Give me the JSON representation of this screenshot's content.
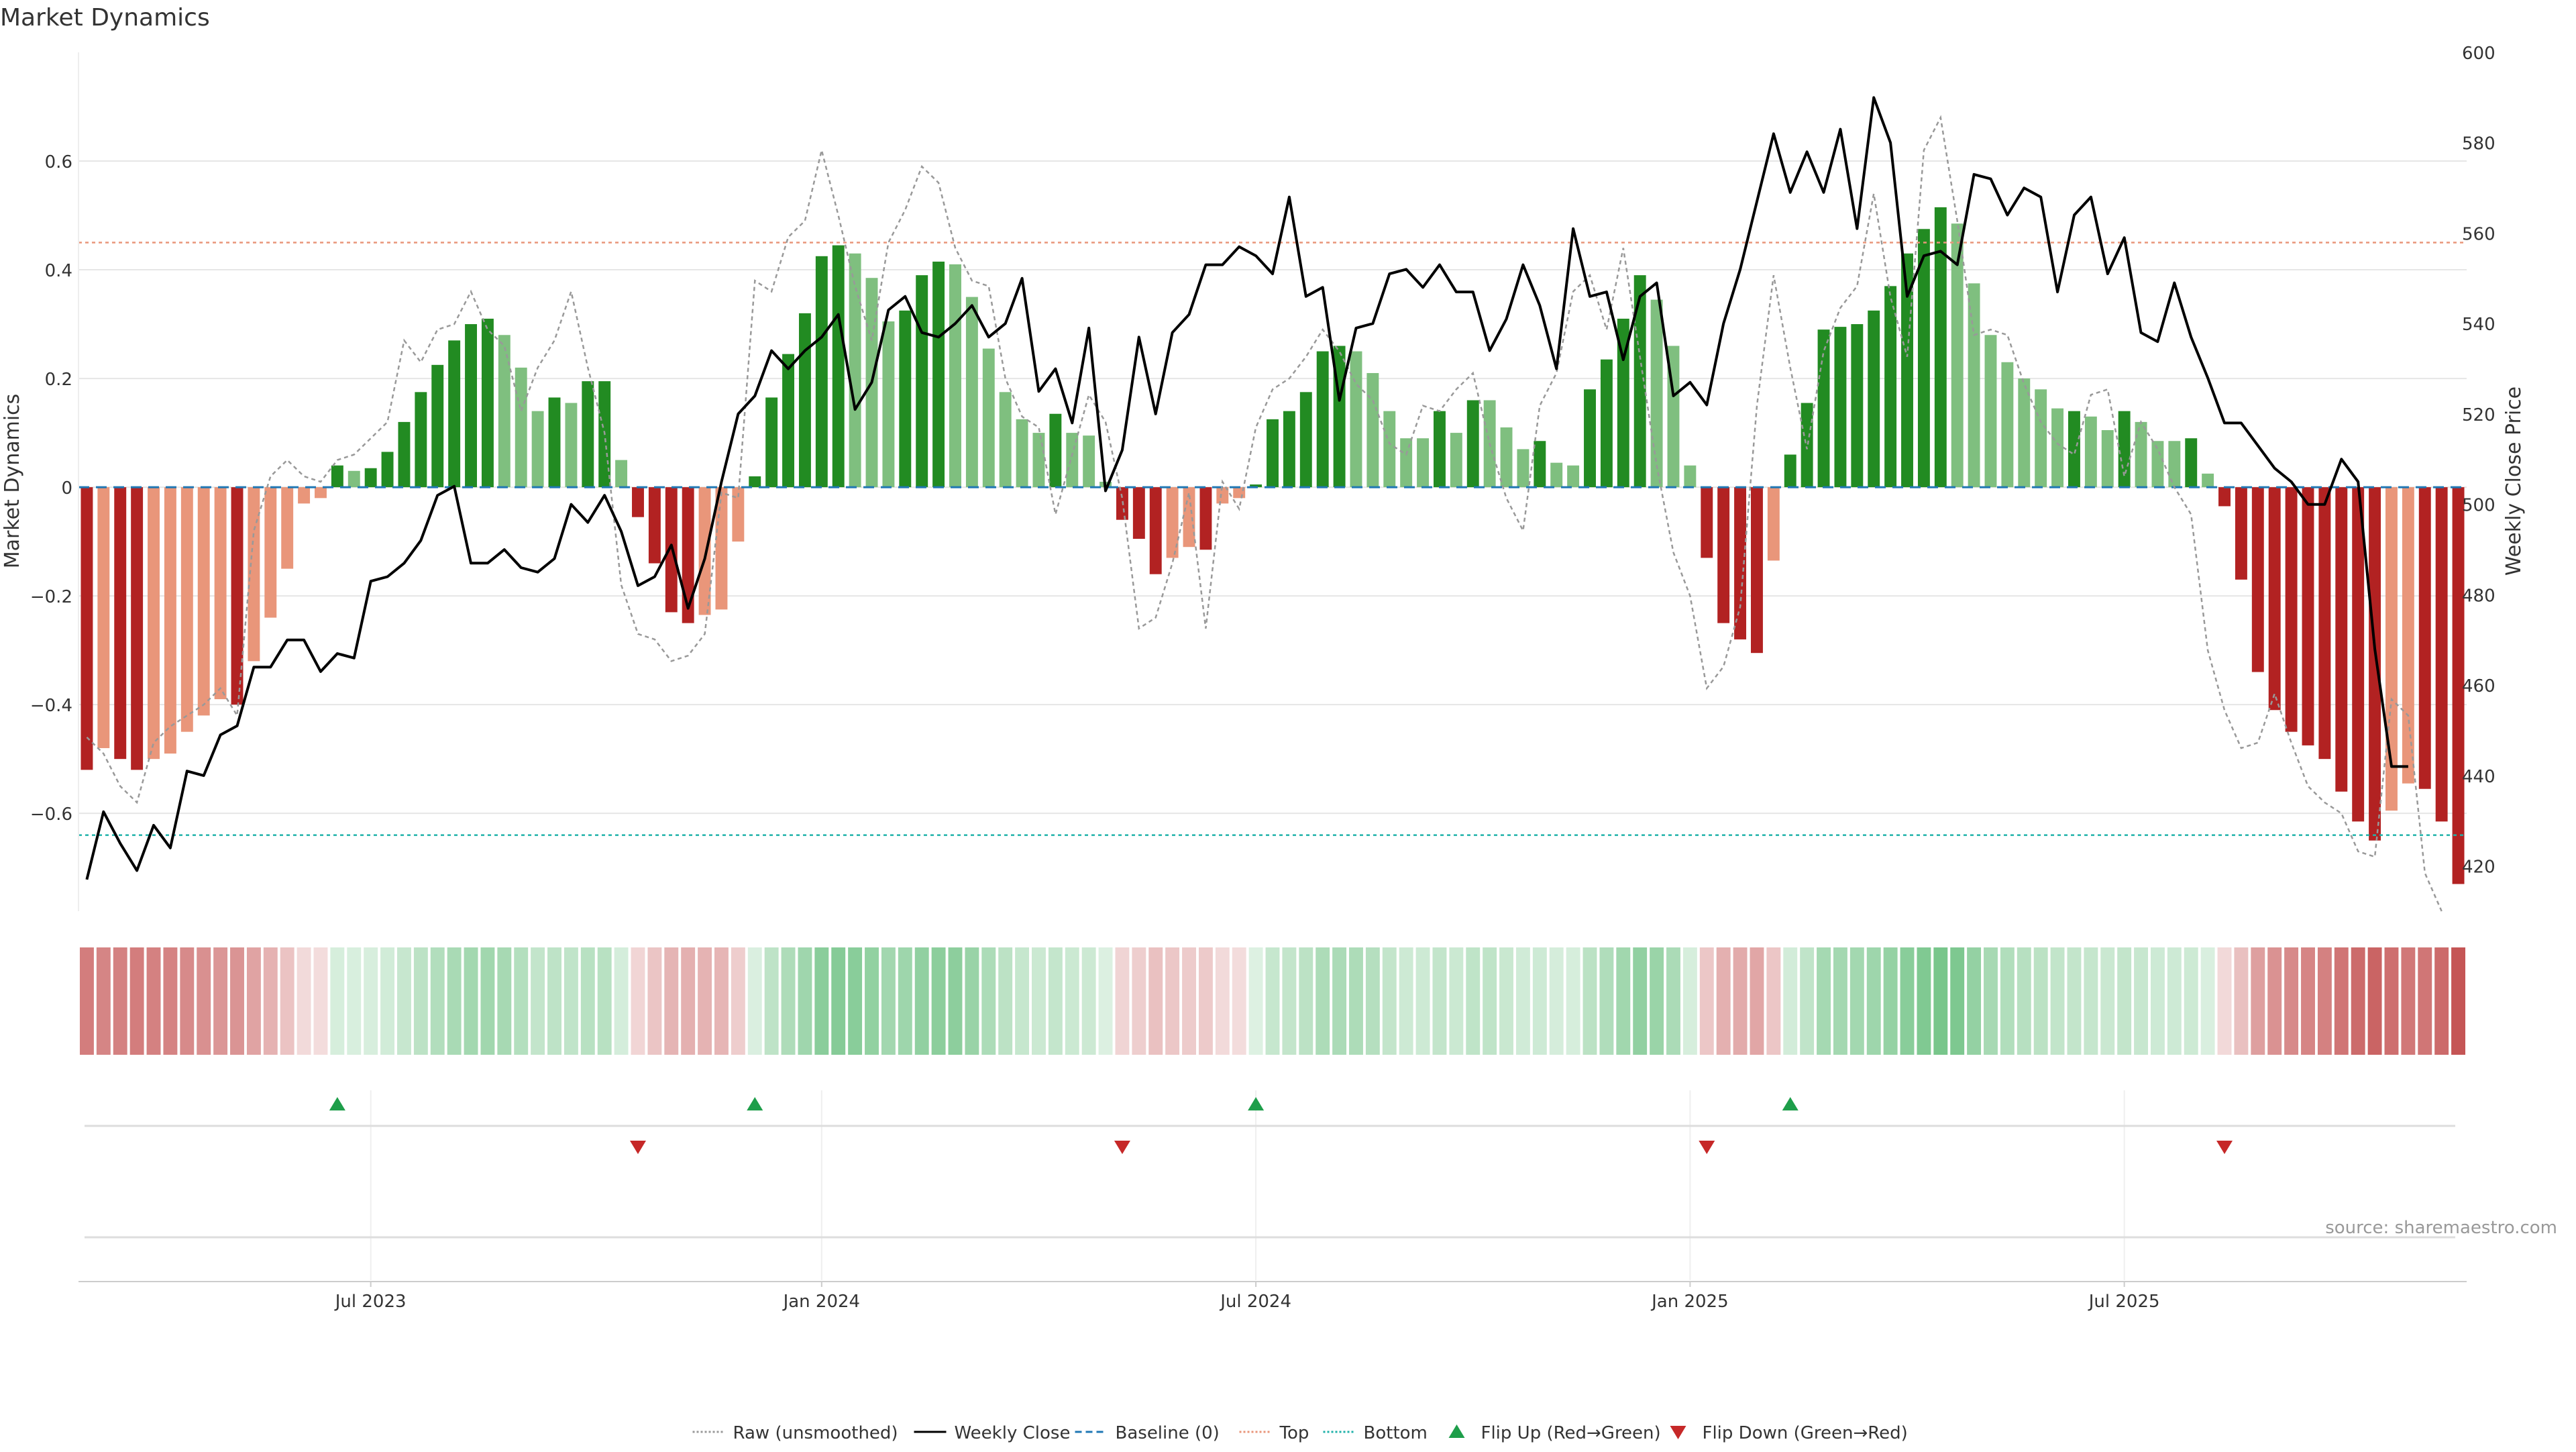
{
  "chart_data": {
    "type": "bar",
    "title": "Market Dynamics",
    "ylabel": "Market Dynamics",
    "y2label": "Weekly Close Price",
    "ylim": [
      -0.78,
      0.8
    ],
    "y2lim": [
      410,
      600
    ],
    "yticks": [
      -0.6,
      -0.4,
      -0.2,
      0,
      0.2,
      0.4,
      0.6
    ],
    "ytick_labels": [
      "−0.6",
      "−0.4",
      "−0.2",
      "0",
      "0.2",
      "0.4",
      "0.6"
    ],
    "y2ticks": [
      420,
      440,
      460,
      480,
      500,
      520,
      540,
      560,
      580,
      600
    ],
    "top_line": 0.45,
    "bottom_line": -0.64,
    "date_ticks": [
      {
        "index": 17,
        "label": "Jul 2023"
      },
      {
        "index": 44,
        "label": "Jan 2024"
      },
      {
        "index": 70,
        "label": "Jul 2024"
      },
      {
        "index": 96,
        "label": "Jan 2025"
      },
      {
        "index": 122,
        "label": "Jul 2025"
      }
    ],
    "series": [
      {
        "name": "Market Dynamics (smoothed)",
        "type": "bar",
        "values": [
          -0.52,
          -0.48,
          -0.5,
          -0.52,
          -0.5,
          -0.49,
          -0.45,
          -0.42,
          -0.39,
          -0.4,
          -0.32,
          -0.24,
          -0.15,
          -0.03,
          -0.02,
          0.04,
          0.03,
          0.035,
          0.065,
          0.12,
          0.175,
          0.225,
          0.27,
          0.3,
          0.31,
          0.28,
          0.22,
          0.14,
          0.165,
          0.155,
          0.195,
          0.195,
          0.05,
          -0.055,
          -0.14,
          -0.23,
          -0.25,
          -0.235,
          -0.225,
          -0.1,
          0.02,
          0.165,
          0.245,
          0.32,
          0.425,
          0.445,
          0.43,
          0.385,
          0.305,
          0.325,
          0.39,
          0.415,
          0.41,
          0.35,
          0.255,
          0.175,
          0.125,
          0.1,
          0.135,
          0.1,
          0.095,
          0.01,
          -0.06,
          -0.095,
          -0.16,
          -0.13,
          -0.11,
          -0.115,
          -0.03,
          -0.02,
          0.005,
          0.125,
          0.14,
          0.175,
          0.25,
          0.26,
          0.25,
          0.21,
          0.14,
          0.09,
          0.09,
          0.14,
          0.1,
          0.16,
          0.16,
          0.11,
          0.07,
          0.085,
          0.045,
          0.04,
          0.18,
          0.235,
          0.31,
          0.39,
          0.345,
          0.26,
          0.04,
          -0.13,
          -0.25,
          -0.28,
          -0.305,
          -0.135,
          0.06,
          0.155,
          0.29,
          0.295,
          0.3,
          0.325,
          0.37,
          0.43,
          0.475,
          0.515,
          0.485,
          0.375,
          0.28,
          0.23,
          0.2,
          0.18,
          0.145,
          0.14,
          0.13,
          0.105,
          0.14,
          0.12,
          0.085,
          0.085,
          0.09,
          0.025,
          -0.035,
          -0.17,
          -0.34,
          -0.41,
          -0.45,
          -0.475,
          -0.5,
          -0.56,
          -0.615,
          -0.65,
          -0.595,
          -0.545,
          -0.555,
          -0.615,
          -0.73
        ],
        "colors": [
          "#b22222",
          "#e9967a",
          "#b22222",
          "#b22222",
          "#e9967a",
          "#e9967a",
          "#e9967a",
          "#e9967a",
          "#e9967a",
          "#b22222",
          "#e9967a",
          "#e9967a",
          "#e9967a",
          "#e9967a",
          "#e9967a",
          "#228b22",
          "#7fbf7f",
          "#228b22",
          "#228b22",
          "#228b22",
          "#228b22",
          "#228b22",
          "#228b22",
          "#228b22",
          "#228b22",
          "#7fbf7f",
          "#7fbf7f",
          "#7fbf7f",
          "#228b22",
          "#7fbf7f",
          "#228b22",
          "#228b22",
          "#7fbf7f",
          "#b22222",
          "#b22222",
          "#b22222",
          "#b22222",
          "#e9967a",
          "#e9967a",
          "#e9967a",
          "#228b22",
          "#228b22",
          "#228b22",
          "#228b22",
          "#228b22",
          "#228b22",
          "#7fbf7f",
          "#7fbf7f",
          "#7fbf7f",
          "#228b22",
          "#228b22",
          "#228b22",
          "#7fbf7f",
          "#7fbf7f",
          "#7fbf7f",
          "#7fbf7f",
          "#7fbf7f",
          "#7fbf7f",
          "#228b22",
          "#7fbf7f",
          "#7fbf7f",
          "#7fbf7f",
          "#b22222",
          "#b22222",
          "#b22222",
          "#e9967a",
          "#e9967a",
          "#b22222",
          "#e9967a",
          "#e9967a",
          "#228b22",
          "#228b22",
          "#228b22",
          "#228b22",
          "#228b22",
          "#228b22",
          "#7fbf7f",
          "#7fbf7f",
          "#7fbf7f",
          "#7fbf7f",
          "#7fbf7f",
          "#228b22",
          "#7fbf7f",
          "#228b22",
          "#7fbf7f",
          "#7fbf7f",
          "#7fbf7f",
          "#228b22",
          "#7fbf7f",
          "#7fbf7f",
          "#228b22",
          "#228b22",
          "#228b22",
          "#228b22",
          "#7fbf7f",
          "#7fbf7f",
          "#7fbf7f",
          "#b22222",
          "#b22222",
          "#b22222",
          "#b22222",
          "#e9967a",
          "#228b22",
          "#228b22",
          "#228b22",
          "#228b22",
          "#228b22",
          "#228b22",
          "#228b22",
          "#228b22",
          "#228b22",
          "#228b22",
          "#7fbf7f",
          "#7fbf7f",
          "#7fbf7f",
          "#7fbf7f",
          "#7fbf7f",
          "#7fbf7f",
          "#7fbf7f",
          "#228b22",
          "#7fbf7f",
          "#7fbf7f",
          "#228b22",
          "#7fbf7f",
          "#7fbf7f",
          "#7fbf7f",
          "#228b22",
          "#7fbf7f",
          "#b22222",
          "#b22222",
          "#b22222",
          "#b22222",
          "#b22222",
          "#b22222",
          "#b22222",
          "#b22222",
          "#b22222",
          "#b22222",
          "#e9967a",
          "#e9967a",
          "#b22222",
          "#b22222",
          "#b22222"
        ]
      },
      {
        "name": "Raw (unsmoothed)",
        "type": "line",
        "values": [
          -0.46,
          -0.49,
          -0.55,
          -0.58,
          -0.47,
          -0.44,
          -0.42,
          -0.4,
          -0.37,
          -0.42,
          -0.08,
          0.02,
          0.05,
          0.02,
          0.01,
          0.05,
          0.06,
          0.09,
          0.12,
          0.27,
          0.23,
          0.29,
          0.3,
          0.36,
          0.29,
          0.26,
          0.14,
          0.22,
          0.27,
          0.36,
          0.22,
          0.1,
          -0.18,
          -0.27,
          -0.28,
          -0.32,
          -0.31,
          -0.27,
          -0.01,
          -0.02,
          0.38,
          0.36,
          0.46,
          0.49,
          0.62,
          0.5,
          0.37,
          0.27,
          0.45,
          0.51,
          0.59,
          0.56,
          0.44,
          0.38,
          0.37,
          0.2,
          0.13,
          0.11,
          -0.05,
          0.06,
          0.17,
          0.12,
          -0.02,
          -0.26,
          -0.24,
          -0.14,
          -0.01,
          -0.26,
          0.01,
          -0.04,
          0.11,
          0.18,
          0.2,
          0.24,
          0.29,
          0.25,
          0.19,
          0.16,
          0.08,
          0.06,
          0.15,
          0.14,
          0.18,
          0.21,
          0.08,
          -0.02,
          -0.08,
          0.15,
          0.21,
          0.36,
          0.39,
          0.29,
          0.44,
          0.24,
          0.04,
          -0.12,
          -0.2,
          -0.37,
          -0.33,
          -0.22,
          0.15,
          0.39,
          0.22,
          0.07,
          0.25,
          0.33,
          0.37,
          0.54,
          0.35,
          0.24,
          0.62,
          0.68,
          0.49,
          0.28,
          0.29,
          0.28,
          0.19,
          0.12,
          0.08,
          0.06,
          0.17,
          0.18,
          0.02,
          0.12,
          0.07,
          0.0,
          -0.05,
          -0.3,
          -0.41,
          -0.48,
          -0.47,
          -0.38,
          -0.47,
          -0.55,
          -0.58,
          -0.6,
          -0.67,
          -0.68,
          -0.39,
          -0.42,
          -0.71,
          -0.78
        ],
        "color": "#999999",
        "dash": "dashed"
      },
      {
        "name": "Weekly Close",
        "type": "line",
        "axis": "right",
        "values": [
          417,
          432,
          425,
          419,
          429,
          424,
          441,
          440,
          449,
          451,
          464,
          464,
          470,
          470,
          463,
          467,
          466,
          483,
          484,
          487,
          492,
          502,
          504,
          487,
          487,
          490,
          486,
          485,
          488,
          500,
          496,
          502,
          494,
          482,
          484,
          491,
          477,
          488,
          505,
          520,
          524,
          534,
          530,
          534,
          537,
          542,
          521,
          527,
          543,
          546,
          538,
          537,
          540,
          544,
          537,
          540,
          550,
          525,
          530,
          518,
          539,
          503,
          512,
          537,
          520,
          538,
          542,
          553,
          553,
          557,
          555,
          551,
          568,
          546,
          548,
          523,
          539,
          540,
          551,
          552,
          548,
          553,
          547,
          547,
          534,
          541,
          553,
          544,
          530,
          561,
          546,
          547,
          532,
          546,
          549,
          524,
          527,
          522,
          540,
          552,
          567,
          582,
          569,
          578,
          569,
          583,
          561,
          590,
          580,
          546,
          555,
          556,
          553,
          573,
          572,
          564,
          570,
          568,
          547,
          564,
          568,
          551,
          559,
          538,
          536,
          549,
          537,
          528,
          518,
          518,
          513,
          508,
          505,
          500,
          500,
          510,
          505,
          468,
          442,
          442
        ],
        "color": "#000000"
      }
    ],
    "strip_values": [
      -0.52,
      -0.48,
      -0.5,
      -0.52,
      -0.5,
      -0.49,
      -0.45,
      -0.42,
      -0.39,
      -0.4,
      -0.32,
      -0.24,
      -0.15,
      -0.03,
      -0.02,
      0.04,
      0.03,
      0.035,
      0.065,
      0.12,
      0.175,
      0.225,
      0.27,
      0.3,
      0.31,
      0.28,
      0.22,
      0.14,
      0.165,
      0.155,
      0.195,
      0.195,
      0.05,
      -0.055,
      -0.14,
      -0.23,
      -0.25,
      -0.235,
      -0.225,
      -0.1,
      0.02,
      0.165,
      0.245,
      0.32,
      0.425,
      0.445,
      0.43,
      0.385,
      0.305,
      0.325,
      0.39,
      0.415,
      0.41,
      0.35,
      0.255,
      0.175,
      0.125,
      0.1,
      0.135,
      0.1,
      0.095,
      0.01,
      -0.06,
      -0.095,
      -0.16,
      -0.13,
      -0.11,
      -0.115,
      -0.03,
      -0.02,
      0.005,
      0.125,
      0.14,
      0.175,
      0.25,
      0.26,
      0.25,
      0.21,
      0.14,
      0.09,
      0.09,
      0.14,
      0.1,
      0.16,
      0.16,
      0.11,
      0.07,
      0.085,
      0.045,
      0.04,
      0.18,
      0.235,
      0.31,
      0.39,
      0.345,
      0.26,
      0.04,
      -0.13,
      -0.25,
      -0.28,
      -0.305,
      -0.135,
      0.06,
      0.155,
      0.29,
      0.295,
      0.3,
      0.325,
      0.37,
      0.43,
      0.475,
      0.515,
      0.485,
      0.375,
      0.28,
      0.23,
      0.2,
      0.18,
      0.145,
      0.14,
      0.13,
      0.105,
      0.14,
      0.12,
      0.085,
      0.085,
      0.09,
      0.025,
      -0.035,
      -0.17,
      -0.34,
      -0.41,
      -0.45,
      -0.475,
      -0.5,
      -0.56,
      -0.615,
      -0.65,
      -0.595,
      -0.545,
      -0.555,
      -0.615,
      -0.73
    ],
    "flip_up_indices": [
      15,
      40,
      70,
      102
    ],
    "flip_down_indices": [
      33,
      62,
      97,
      128
    ],
    "legend": [
      {
        "label": "Raw (unsmoothed)",
        "kind": "line",
        "color": "#999999",
        "dash": "3,3"
      },
      {
        "label": "Weekly Close",
        "kind": "line",
        "color": "#000000",
        "dash": ""
      },
      {
        "label": "Baseline (0)",
        "kind": "line",
        "color": "#1f77b4",
        "dash": "10,6"
      },
      {
        "label": "Top",
        "kind": "line",
        "color": "#e9967a",
        "dash": "3,3"
      },
      {
        "label": "Bottom",
        "kind": "line",
        "color": "#20b2aa",
        "dash": "3,3"
      },
      {
        "label": "Flip Up (Red→Green)",
        "kind": "up",
        "color": "#1e9e4a",
        "dash": ""
      },
      {
        "label": "Flip Down (Green→Red)",
        "kind": "down",
        "color": "#c62828",
        "dash": ""
      }
    ],
    "legend_position": "bottom-center",
    "source": "source: sharemaestro.com",
    "colors": {
      "strong_green": "#228b22",
      "light_green": "#7fbf7f",
      "strong_red": "#b22222",
      "light_red": "#e9967a",
      "baseline": "#1f77b4",
      "top": "#e9967a",
      "bottom": "#20b2aa",
      "grid": "#e6e6e6",
      "axis": "#cccccc",
      "text": "#333333"
    }
  }
}
